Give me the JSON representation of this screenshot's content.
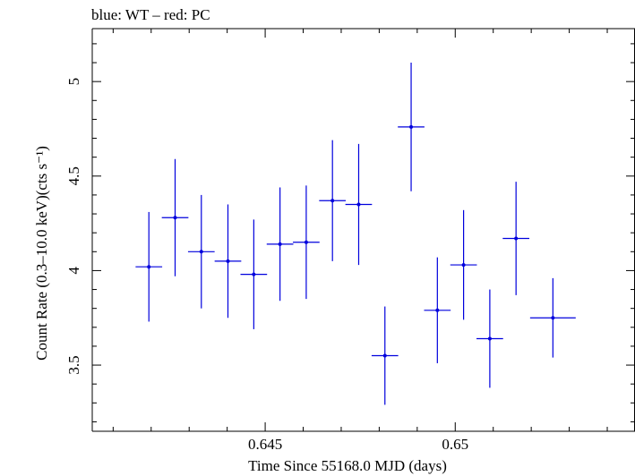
{
  "chart_data": {
    "type": "scatter",
    "title": "blue: WT – red: PC",
    "xlabel": "Time Since 55168.0 MJD (days)",
    "ylabel": "Count Rate (0.3–10.0 keV)(cts s⁻¹)",
    "xlim": [
      0.64045,
      0.65473
    ],
    "ylim": [
      3.15,
      5.28
    ],
    "x_ticks": [
      0.645,
      0.65
    ],
    "x_tick_labels": [
      "0.645",
      "0.65"
    ],
    "y_ticks": [
      3.5,
      4,
      4.5,
      5
    ],
    "y_tick_labels": [
      "3.5",
      "4",
      "4.5",
      "5"
    ],
    "grid": false,
    "series": [
      {
        "color": "#0000dd",
        "points": [
          {
            "x": 0.64194,
            "xerr": 0.00035,
            "y": 4.02,
            "yerr": 0.29
          },
          {
            "x": 0.64263,
            "xerr": 0.00035,
            "y": 4.28,
            "yerr": 0.31
          },
          {
            "x": 0.64332,
            "xerr": 0.00035,
            "y": 4.1,
            "yerr": 0.3
          },
          {
            "x": 0.64402,
            "xerr": 0.00035,
            "y": 4.05,
            "yerr": 0.3
          },
          {
            "x": 0.6447,
            "xerr": 0.00035,
            "y": 3.98,
            "yerr": 0.29
          },
          {
            "x": 0.64539,
            "xerr": 0.00035,
            "y": 4.14,
            "yerr": 0.3
          },
          {
            "x": 0.64608,
            "xerr": 0.00035,
            "y": 4.15,
            "yerr": 0.3
          },
          {
            "x": 0.64677,
            "xerr": 0.00035,
            "y": 4.37,
            "yerr": 0.32
          },
          {
            "x": 0.64746,
            "xerr": 0.00035,
            "y": 4.35,
            "yerr": 0.32
          },
          {
            "x": 0.64815,
            "xerr": 0.00035,
            "y": 3.55,
            "yerr": 0.26
          },
          {
            "x": 0.64884,
            "xerr": 0.00035,
            "y": 4.76,
            "yerr": 0.34
          },
          {
            "x": 0.64953,
            "xerr": 0.00035,
            "y": 3.79,
            "yerr": 0.28
          },
          {
            "x": 0.65022,
            "xerr": 0.00035,
            "y": 4.03,
            "yerr": 0.29
          },
          {
            "x": 0.65091,
            "xerr": 0.00035,
            "y": 3.64,
            "yerr": 0.26
          },
          {
            "x": 0.6516,
            "xerr": 0.00035,
            "y": 4.17,
            "yerr": 0.3
          },
          {
            "x": 0.65257,
            "xerr": 0.0006,
            "y": 3.75,
            "yerr": 0.21
          }
        ]
      }
    ]
  }
}
